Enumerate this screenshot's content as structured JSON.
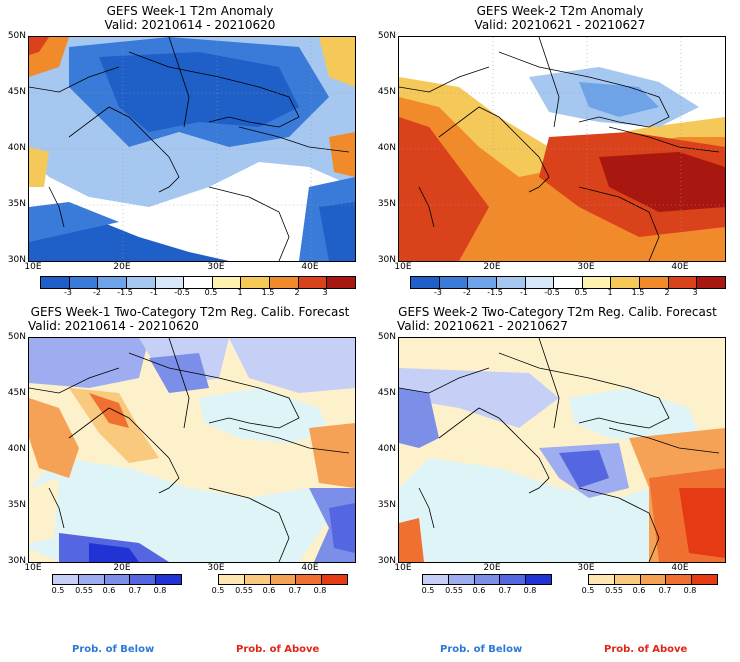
{
  "panels": [
    {
      "title_line1": "GEFS Week-1 T2m Anomaly",
      "title_line2": "Valid: 20210614 - 20210620"
    },
    {
      "title_line1": "GEFS Week-2 T2m Anomaly",
      "title_line2": "Valid: 20210621 - 20210627"
    },
    {
      "title_line1": "GEFS Week-1 Two-Category T2m Reg. Calib. Forecast",
      "title_line2": "Valid: 20210614 - 20210620"
    },
    {
      "title_line1": "GEFS Week-2 Two-Category T2m Reg. Calib. Forecast",
      "title_line2": "Valid: 20210621 - 20210627"
    }
  ],
  "axes": {
    "lat_labels": [
      "50N",
      "45N",
      "40N",
      "35N",
      "30N"
    ],
    "lon_labels": [
      "10E",
      "20E",
      "30E",
      "40E"
    ]
  },
  "anomaly_colorbar": {
    "labels": [
      "-3",
      "-2",
      "-1.5",
      "-1",
      "-0.5",
      "0.5",
      "1",
      "1.5",
      "2",
      "3"
    ],
    "colors": [
      "#1f5fc8",
      "#3a7ad8",
      "#6ea3e8",
      "#a6c8f0",
      "#d6e8fa",
      "#ffffff",
      "#fff2b0",
      "#f5c85a",
      "#f08a2a",
      "#d9421a",
      "#a81810"
    ]
  },
  "prob_colorbars": {
    "below": {
      "labels": [
        "0.5",
        "0.55",
        "0.6",
        "0.7",
        "0.8"
      ],
      "colors": [
        "#c6cff5",
        "#9eadf0",
        "#7b8ee8",
        "#5466e0",
        "#2233d6"
      ]
    },
    "above": {
      "labels": [
        "0.5",
        "0.55",
        "0.6",
        "0.7",
        "0.8"
      ],
      "colors": [
        "#fde8b2",
        "#f9c97e",
        "#f5a256",
        "#f07032",
        "#e63a14"
      ]
    }
  },
  "legend": {
    "below_label": "Prob. of Below",
    "above_label": "Prob. of Above",
    "below_color": "#2b79d8",
    "above_color": "#e0261a"
  }
}
